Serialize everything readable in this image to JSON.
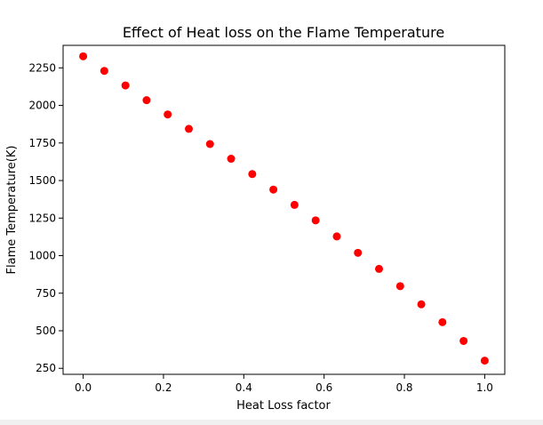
{
  "chart_data": {
    "type": "scatter",
    "title": "Effect of Heat loss on the Flame Temperature",
    "xlabel": "Heat Loss factor",
    "ylabel": "Flame Temperature(K)",
    "xlim": [
      -0.05,
      1.05
    ],
    "ylim": [
      210,
      2400
    ],
    "xticks": [
      0.0,
      0.2,
      0.4,
      0.6,
      0.8,
      1.0
    ],
    "xtick_labels": [
      "0.0",
      "0.2",
      "0.4",
      "0.6",
      "0.8",
      "1.0"
    ],
    "yticks": [
      250,
      500,
      750,
      1000,
      1250,
      1500,
      1750,
      2000,
      2250
    ],
    "ytick_labels": [
      "250",
      "500",
      "750",
      "1000",
      "1250",
      "1500",
      "1750",
      "2000",
      "2250"
    ],
    "grid": false,
    "marker_color": "#ff0000",
    "x": [
      0.0,
      0.0526,
      0.1053,
      0.1579,
      0.2105,
      0.2632,
      0.3158,
      0.3684,
      0.4211,
      0.4737,
      0.5263,
      0.5789,
      0.6316,
      0.6842,
      0.7368,
      0.7895,
      0.8421,
      0.8947,
      0.9474,
      1.0
    ],
    "y": [
      2327,
      2230,
      2133,
      2035,
      1940,
      1844,
      1743,
      1645,
      1543,
      1440,
      1338,
      1235,
      1128,
      1019,
      912,
      797,
      676,
      557,
      432,
      301
    ]
  }
}
